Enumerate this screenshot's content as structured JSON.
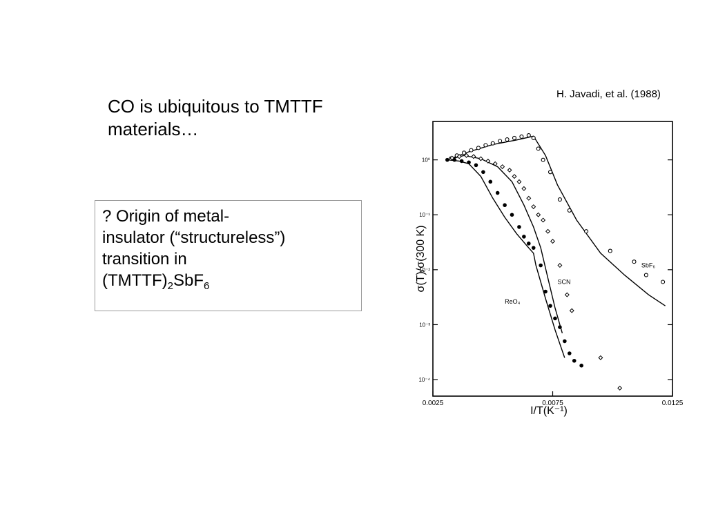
{
  "slide": {
    "headline": "CO is ubiquitous to TMTTF materials…",
    "citation": "H. Javadi,  et al. (1988)",
    "box": {
      "line1": "? Origin of  metal-",
      "line2": "insulator (“structureless”)",
      "line3": "transition in",
      "formula_pre": "(TMTTF)",
      "formula_sub1": "2",
      "formula_mid": "SbF",
      "formula_sub2": "6"
    }
  },
  "chart_data": {
    "type": "scatter",
    "xlabel": "I/T(K⁻¹)",
    "ylabel": "σ(T)/σ(300 K)",
    "xlim": [
      0.0025,
      0.0125
    ],
    "ylim": [
      5e-05,
      5
    ],
    "log_y": true,
    "x_tick_labels": [
      "0.0025",
      "0.0075",
      "0.0125"
    ],
    "x_tick_values": [
      0.0025,
      0.0075,
      0.0125
    ],
    "y_tick_labels": [
      "10⁰",
      "10⁻¹",
      "10⁻²",
      "10⁻³",
      "10⁻⁴"
    ],
    "y_tick_values": [
      1,
      0.1,
      0.01,
      0.001,
      0.0001
    ],
    "curve_labels": [
      {
        "text": "SbF₆",
        "x": 0.0112,
        "y": 0.011
      },
      {
        "text": "SCN",
        "x": 0.0077,
        "y": 0.0055
      },
      {
        "text": "ReO₄",
        "x": 0.0055,
        "y": 0.0024
      }
    ],
    "series": [
      {
        "name": "SbF₆",
        "marker": "open-circle",
        "points": [
          [
            0.00325,
            1.06
          ],
          [
            0.0035,
            1.2
          ],
          [
            0.0038,
            1.35
          ],
          [
            0.0041,
            1.5
          ],
          [
            0.0044,
            1.65
          ],
          [
            0.0047,
            1.85
          ],
          [
            0.005,
            2.0
          ],
          [
            0.0053,
            2.2
          ],
          [
            0.0056,
            2.35
          ],
          [
            0.0059,
            2.5
          ],
          [
            0.0062,
            2.65
          ],
          [
            0.0065,
            2.8
          ],
          [
            0.0067,
            2.5
          ],
          [
            0.0069,
            1.6
          ],
          [
            0.0071,
            1.0
          ],
          [
            0.0074,
            0.6
          ],
          [
            0.0078,
            0.19
          ],
          [
            0.0082,
            0.12
          ],
          [
            0.0089,
            0.05
          ],
          [
            0.0099,
            0.022
          ],
          [
            0.0109,
            0.014
          ],
          [
            0.0114,
            0.008
          ],
          [
            0.0121,
            0.006
          ]
        ]
      },
      {
        "name": "SCN",
        "marker": "open-diamond",
        "points": [
          [
            0.0033,
            1.08
          ],
          [
            0.0036,
            1.15
          ],
          [
            0.0039,
            1.2
          ],
          [
            0.0042,
            1.15
          ],
          [
            0.0045,
            1.05
          ],
          [
            0.0048,
            0.95
          ],
          [
            0.0051,
            0.85
          ],
          [
            0.0054,
            0.75
          ],
          [
            0.0057,
            0.65
          ],
          [
            0.0059,
            0.5
          ],
          [
            0.0061,
            0.4
          ],
          [
            0.0063,
            0.3
          ],
          [
            0.0065,
            0.2
          ],
          [
            0.0067,
            0.14
          ],
          [
            0.0069,
            0.1
          ],
          [
            0.0071,
            0.08
          ],
          [
            0.0073,
            0.05
          ],
          [
            0.0075,
            0.033
          ],
          [
            0.0078,
            0.012
          ],
          [
            0.0081,
            0.0035
          ],
          [
            0.0083,
            0.0018
          ],
          [
            0.0095,
            0.00025
          ],
          [
            0.0103,
            7e-05
          ]
        ]
      },
      {
        "name": "ReO₄",
        "marker": "filled-circle",
        "points": [
          [
            0.0031,
            1.0
          ],
          [
            0.0034,
            1.0
          ],
          [
            0.0037,
            0.95
          ],
          [
            0.004,
            0.9
          ],
          [
            0.0043,
            0.8
          ],
          [
            0.0046,
            0.6
          ],
          [
            0.0049,
            0.4
          ],
          [
            0.0052,
            0.25
          ],
          [
            0.0055,
            0.15
          ],
          [
            0.0058,
            0.1
          ],
          [
            0.0061,
            0.06
          ],
          [
            0.0063,
            0.04
          ],
          [
            0.0065,
            0.03
          ],
          [
            0.0067,
            0.025
          ],
          [
            0.007,
            0.012
          ],
          [
            0.0072,
            0.004
          ],
          [
            0.0074,
            0.0022
          ],
          [
            0.0076,
            0.0013
          ],
          [
            0.0078,
            0.0009
          ],
          [
            0.008,
            0.0005
          ],
          [
            0.0082,
            0.0003
          ],
          [
            0.0084,
            0.00022
          ],
          [
            0.0087,
            0.00018
          ]
        ]
      }
    ],
    "fit_curves": [
      {
        "name": "SbF₆",
        "points": [
          [
            0.0031,
            1.0
          ],
          [
            0.004,
            1.4
          ],
          [
            0.005,
            1.9
          ],
          [
            0.006,
            2.3
          ],
          [
            0.0067,
            2.7
          ],
          [
            0.0072,
            1.2
          ],
          [
            0.0077,
            0.35
          ],
          [
            0.0085,
            0.08
          ],
          [
            0.0095,
            0.02
          ],
          [
            0.0105,
            0.008
          ],
          [
            0.0115,
            0.0035
          ],
          [
            0.0122,
            0.0022
          ]
        ]
      },
      {
        "name": "SCN",
        "points": [
          [
            0.0031,
            1.0
          ],
          [
            0.0038,
            1.2
          ],
          [
            0.0045,
            1.05
          ],
          [
            0.0052,
            0.75
          ],
          [
            0.0058,
            0.4
          ],
          [
            0.0063,
            0.15
          ],
          [
            0.0067,
            0.06
          ],
          [
            0.007,
            0.025
          ],
          [
            0.0073,
            0.007
          ],
          [
            0.0076,
            0.002
          ],
          [
            0.0079,
            0.0007
          ]
        ]
      },
      {
        "name": "ReO₄",
        "points": [
          [
            0.0031,
            1.0
          ],
          [
            0.0036,
            0.95
          ],
          [
            0.004,
            0.85
          ],
          [
            0.0045,
            0.5
          ],
          [
            0.005,
            0.2
          ],
          [
            0.0055,
            0.09
          ],
          [
            0.006,
            0.045
          ],
          [
            0.0065,
            0.025
          ],
          [
            0.0067,
            0.02
          ],
          [
            0.0068,
            0.012
          ],
          [
            0.0072,
            0.003
          ],
          [
            0.0076,
            0.0008
          ],
          [
            0.008,
            0.00025
          ]
        ]
      }
    ]
  }
}
